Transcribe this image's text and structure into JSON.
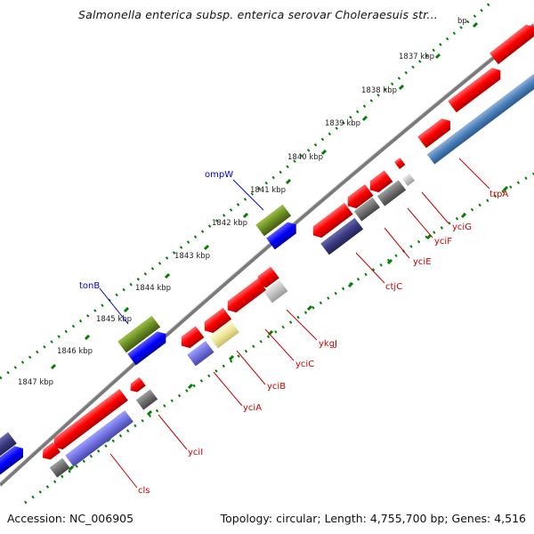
{
  "title": "Salmonella enterica subsp. enterica serovar Choleraesuis str...",
  "footer": {
    "accession": "Accession: NC_006905",
    "summary": "Topology: circular; Length: 4,755,700 bp; Genes: 4,516"
  },
  "kbp_labels": [
    "1837 kbp",
    "1838 kbp",
    "1839 kbp",
    "1840 kbp",
    "1841 kbp",
    "1842 kbp",
    "1843 kbp",
    "1844 kbp",
    "1845 kbp",
    "1846 kbp",
    "1847 kbp",
    "bp"
  ],
  "gene_labels": {
    "ompW": "ompW",
    "tonB": "tonB",
    "trpA": "trpA",
    "yciG": "yciG",
    "yciF": "yciF",
    "yciE": "yciE",
    "ctjC": "ctjC",
    "ykgJ": "ykgJ",
    "yciC": "yciC",
    "yciB": "yciB",
    "yciA": "yciA",
    "yciI": "yciI",
    "cls": "cls"
  },
  "colors": {
    "forward_cds": "#ff0000",
    "reverse_cds": "#4060c0",
    "blue_feature": "#0000ff",
    "green_feature": "#6b8e23",
    "grey_feature": "#707070",
    "backbone": "#7a7a7a",
    "tick": "#008000",
    "label_red": "#cc0000",
    "label_blue": "#0000cc"
  }
}
